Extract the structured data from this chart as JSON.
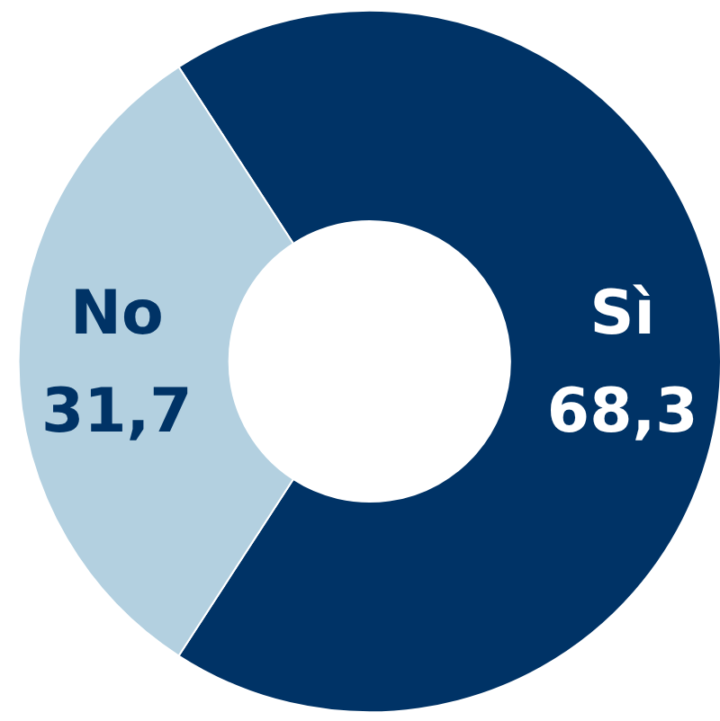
{
  "chart_data": {
    "type": "donut",
    "categories": [
      "Sì",
      "No"
    ],
    "values": [
      68.3,
      31.7
    ],
    "value_labels": [
      "68,3",
      "31,7"
    ],
    "colors": [
      "#003366",
      "#b3d0e0"
    ]
  }
}
